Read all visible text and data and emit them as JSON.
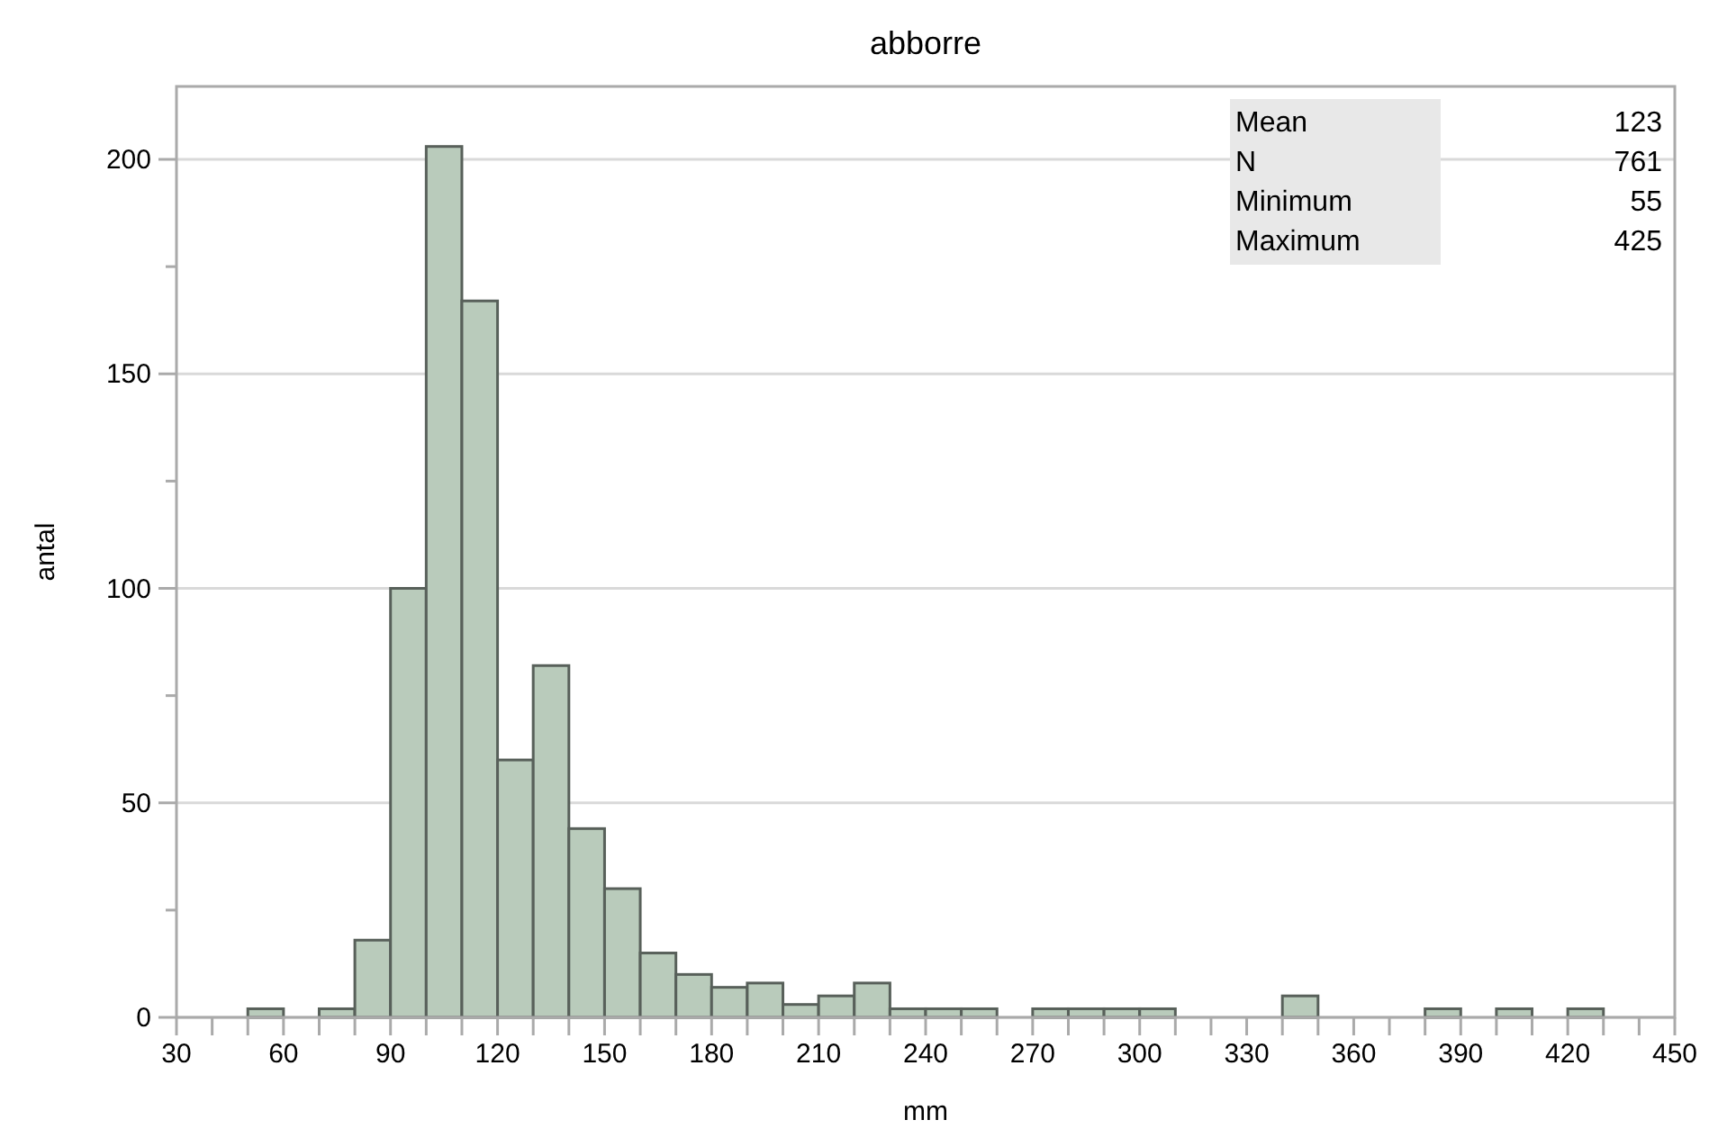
{
  "chart_data": {
    "type": "histogram",
    "title": "abborre",
    "xlabel": "mm",
    "ylabel": "antal",
    "bins": [
      50,
      60,
      70,
      80,
      90,
      100,
      110,
      120,
      130,
      140,
      150,
      160,
      170,
      180,
      190,
      200,
      210,
      220,
      230,
      240,
      250,
      260,
      270,
      280,
      290,
      300,
      310,
      320,
      330,
      340,
      350,
      360,
      370,
      380,
      390,
      400,
      410,
      420,
      430
    ],
    "values": [
      2,
      0,
      2,
      18,
      100,
      203,
      167,
      60,
      82,
      44,
      30,
      15,
      10,
      7,
      8,
      3,
      5,
      8,
      2,
      2,
      2,
      0,
      2,
      2,
      2,
      2,
      0,
      0,
      0,
      5,
      0,
      0,
      0,
      2,
      0,
      2,
      0,
      2
    ],
    "color": "#b9cbbb",
    "xlim": [
      30,
      450
    ],
    "xticks": [
      30,
      {
        "value": 40,
        "label": null
      },
      {
        "value": 50,
        "label": null
      },
      60,
      {
        "value": 70,
        "label": null
      },
      {
        "value": 80,
        "label": null
      },
      90,
      {
        "value": 100,
        "label": null
      },
      {
        "value": 110,
        "label": null
      },
      120,
      {
        "value": 130,
        "label": null
      },
      {
        "value": 140,
        "label": null
      },
      150,
      {
        "value": 160,
        "label": null
      },
      {
        "value": 170,
        "label": null
      },
      180,
      {
        "value": 190,
        "label": null
      },
      {
        "value": 200,
        "label": null
      },
      210,
      {
        "value": 220,
        "label": null
      },
      {
        "value": 230,
        "label": null
      },
      240,
      {
        "value": 250,
        "label": null
      },
      {
        "value": 260,
        "label": null
      },
      270,
      {
        "value": 280,
        "label": null
      },
      {
        "value": 290,
        "label": null
      },
      300,
      {
        "value": 310,
        "label": null
      },
      {
        "value": 320,
        "label": null
      },
      330,
      {
        "value": 340,
        "label": null
      },
      {
        "value": 350,
        "label": null
      },
      360,
      {
        "value": 370,
        "label": null
      },
      {
        "value": 380,
        "label": null
      },
      390,
      {
        "value": 400,
        "label": null
      },
      {
        "value": 410,
        "label": null
      },
      420,
      {
        "value": 430,
        "label": null
      },
      {
        "value": 440,
        "label": null
      },
      450
    ],
    "ylim": [
      0,
      217
    ],
    "yticks": [
      0,
      {
        "value": 25,
        "label": null
      },
      50,
      {
        "value": 75,
        "label": null
      },
      100,
      {
        "value": 125,
        "label": null
      },
      150,
      {
        "value": 175,
        "label": null
      },
      200
    ],
    "grid": "y",
    "annotations": [
      "Mean",
      "123",
      "N",
      "761",
      "Minimum",
      "55",
      "Maximum",
      "425"
    ]
  }
}
